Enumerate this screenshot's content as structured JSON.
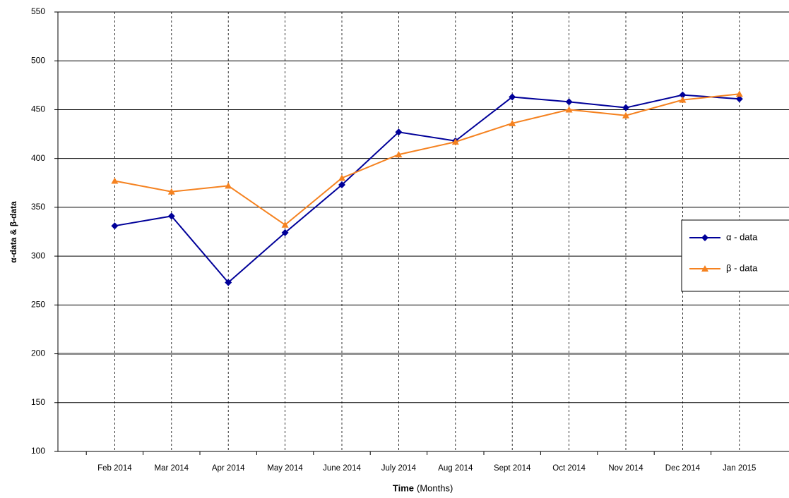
{
  "chart_data": {
    "type": "line",
    "y_label": "α-data & β-data",
    "x_label": "Time",
    "x_label_unit": "(Months)",
    "categories": [
      "Feb 2014",
      "Mar 2014",
      "Apr 2014",
      "May 2014",
      "June 2014",
      "July 2014",
      "Aug 2014",
      "Sept 2014",
      "Oct 2014",
      "Nov 2014",
      "Dec 2014",
      "Jan 2015"
    ],
    "series": [
      {
        "name": "α - data",
        "color": "#000099",
        "marker": "diamond",
        "values": [
          331,
          341,
          273,
          324,
          373,
          427,
          418,
          463,
          458,
          452,
          465,
          461
        ]
      },
      {
        "name": "β - data",
        "color": "#f58220",
        "marker": "triangle",
        "values": [
          377,
          366,
          372,
          332,
          380,
          404,
          417,
          436,
          450,
          444,
          460,
          466
        ]
      }
    ],
    "ylim": [
      100,
      550
    ],
    "yticks": [
      100,
      150,
      200,
      250,
      300,
      350,
      400,
      450,
      500,
      550
    ],
    "reference_line": 200,
    "grid": true
  }
}
